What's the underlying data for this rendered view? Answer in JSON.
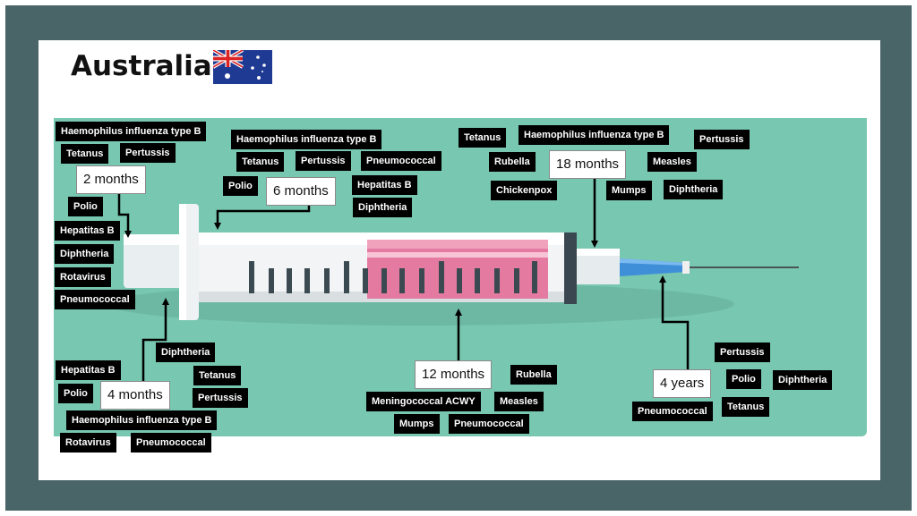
{
  "slide": {
    "title": "Australia",
    "flag_icon": "australia-flag-icon",
    "colors": {
      "frame": "#4a6568",
      "panel": "#78c7b0",
      "label_bg": "#000000",
      "label_text": "#ffffff"
    }
  },
  "groups": {
    "m2": {
      "age": "2 months",
      "vaccines": [
        "Haemophilus influenza type B",
        "Tetanus",
        "Pertussis",
        "Polio",
        "Hepatitas B",
        "Diphtheria",
        "Rotavirus",
        "Pneumococcal"
      ]
    },
    "m4": {
      "age": "4 months",
      "vaccines": [
        "Diphtheria",
        "Hepatitas B",
        "Tetanus",
        "Polio",
        "Pertussis",
        "Haemophilus influenza type B",
        "Rotavirus",
        "Pneumococcal"
      ]
    },
    "m6": {
      "age": "6 months",
      "vaccines": [
        "Haemophilus influenza type B",
        "Tetanus",
        "Pertussis",
        "Pneumococcal",
        "Polio",
        "Hepatitas B",
        "Diphtheria"
      ]
    },
    "m12": {
      "age": "12 months",
      "vaccines": [
        "Rubella",
        "Meningococcal ACWY",
        "Measles",
        "Mumps",
        "Pneumococcal"
      ]
    },
    "m18": {
      "age": "18 months",
      "vaccines": [
        "Tetanus",
        "Haemophilus influenza type B",
        "Pertussis",
        "Rubella",
        "Measles",
        "Chickenpox",
        "Mumps",
        "Diphtheria"
      ]
    },
    "y4": {
      "age": "4 years",
      "vaccines": [
        "Pertussis",
        "Polio",
        "Diphtheria",
        "Pneumococcal",
        "Tetanus"
      ]
    }
  }
}
